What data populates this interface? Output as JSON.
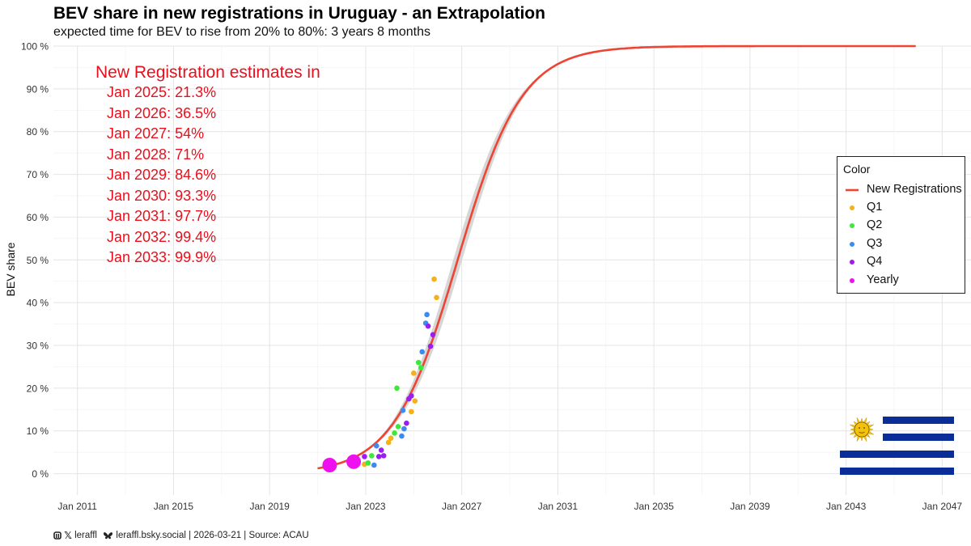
{
  "title": "BEV share in new registrations in Uruguay - an Extrapolation",
  "subtitle": "expected time for BEV to rise from 20% to 80%: 3 years 8 months",
  "estimates": {
    "heading": "New Registration estimates in",
    "lines": [
      "Jan 2025: 21.3%",
      "Jan 2026: 36.5%",
      "Jan 2027: 54%",
      "Jan 2028: 71%",
      "Jan 2029: 84.6%",
      "Jan 2030: 93.3%",
      "Jan 2031: 97.7%",
      "Jan 2032: 99.4%",
      "Jan 2033: 99.9%"
    ]
  },
  "legend": {
    "title": "Color",
    "items": [
      {
        "label": "New Registrations",
        "kind": "line",
        "color": "#ee4433"
      },
      {
        "label": "Q1",
        "kind": "point",
        "color": "#f5b01a"
      },
      {
        "label": "Q2",
        "kind": "point",
        "color": "#3ee83a"
      },
      {
        "label": "Q3",
        "kind": "point",
        "color": "#3a8cf0"
      },
      {
        "label": "Q4",
        "kind": "point",
        "color": "#9a1ef0"
      },
      {
        "label": "Yearly",
        "kind": "point",
        "color": "#ee10ee"
      }
    ]
  },
  "footer": {
    "handle": "leraffl",
    "bsky": "leraffl.bsky.social",
    "rest": " | 2026-03-21 | Source: ACAU"
  },
  "flag": {
    "name": "uruguay-flag",
    "blue": "#0a2d98",
    "sun": "#f4c20d"
  },
  "chart_data": {
    "type": "line",
    "ylabel": "BEV share",
    "xlabel": "",
    "x_ticks": [
      "Jan 2011",
      "Jan 2015",
      "Jan 2019",
      "Jan 2023",
      "Jan 2027",
      "Jan 2031",
      "Jan 2035",
      "Jan 2039",
      "Jan 2043",
      "Jan 2047"
    ],
    "y_ticks": [
      "0 %",
      "10 %",
      "20 %",
      "30 %",
      "40 %",
      "50 %",
      "60 %",
      "70 %",
      "80 %",
      "90 %",
      "100 %"
    ],
    "xlim": [
      2010.0,
      2048.2
    ],
    "ylim": [
      -0.05,
      1.0
    ],
    "grid": true,
    "legend_position": "right",
    "curve": {
      "name": "New Registrations",
      "color": "#ee4433",
      "x_start": 2021.0,
      "x_end": 2045.9,
      "midpoint": 2026.83,
      "rate": 0.75,
      "band_halfwidth_max": 0.035
    },
    "points": [
      {
        "x": 2022.95,
        "y": 0.022,
        "q": "Q1"
      },
      {
        "x": 2023.95,
        "y": 0.073,
        "q": "Q1"
      },
      {
        "x": 2024.05,
        "y": 0.083,
        "q": "Q1"
      },
      {
        "x": 2024.9,
        "y": 0.145,
        "q": "Q1"
      },
      {
        "x": 2025.05,
        "y": 0.17,
        "q": "Q1"
      },
      {
        "x": 2025.0,
        "y": 0.235,
        "q": "Q1"
      },
      {
        "x": 2025.95,
        "y": 0.412,
        "q": "Q1"
      },
      {
        "x": 2025.85,
        "y": 0.455,
        "q": "Q1"
      },
      {
        "x": 2023.1,
        "y": 0.025,
        "q": "Q2"
      },
      {
        "x": 2023.25,
        "y": 0.042,
        "q": "Q2"
      },
      {
        "x": 2024.2,
        "y": 0.095,
        "q": "Q2"
      },
      {
        "x": 2024.35,
        "y": 0.11,
        "q": "Q2"
      },
      {
        "x": 2024.3,
        "y": 0.2,
        "q": "Q2"
      },
      {
        "x": 2025.2,
        "y": 0.26,
        "q": "Q2"
      },
      {
        "x": 2025.3,
        "y": 0.248,
        "q": "Q2"
      },
      {
        "x": 2023.35,
        "y": 0.02,
        "q": "Q3"
      },
      {
        "x": 2023.45,
        "y": 0.065,
        "q": "Q3"
      },
      {
        "x": 2024.5,
        "y": 0.088,
        "q": "Q3"
      },
      {
        "x": 2024.6,
        "y": 0.105,
        "q": "Q3"
      },
      {
        "x": 2024.55,
        "y": 0.148,
        "q": "Q3"
      },
      {
        "x": 2025.35,
        "y": 0.285,
        "q": "Q3"
      },
      {
        "x": 2025.5,
        "y": 0.352,
        "q": "Q3"
      },
      {
        "x": 2025.55,
        "y": 0.372,
        "q": "Q3"
      },
      {
        "x": 2022.95,
        "y": 0.04,
        "q": "Q4"
      },
      {
        "x": 2023.55,
        "y": 0.04,
        "q": "Q4"
      },
      {
        "x": 2023.75,
        "y": 0.042,
        "q": "Q4"
      },
      {
        "x": 2023.65,
        "y": 0.055,
        "q": "Q4"
      },
      {
        "x": 2024.7,
        "y": 0.118,
        "q": "Q4"
      },
      {
        "x": 2024.8,
        "y": 0.175,
        "q": "Q4"
      },
      {
        "x": 2024.9,
        "y": 0.182,
        "q": "Q4"
      },
      {
        "x": 2025.7,
        "y": 0.298,
        "q": "Q4"
      },
      {
        "x": 2025.8,
        "y": 0.325,
        "q": "Q4"
      },
      {
        "x": 2025.6,
        "y": 0.345,
        "q": "Q4"
      },
      {
        "x": 2021.5,
        "y": 0.02,
        "q": "Yearly"
      },
      {
        "x": 2022.5,
        "y": 0.028,
        "q": "Yearly"
      }
    ]
  }
}
